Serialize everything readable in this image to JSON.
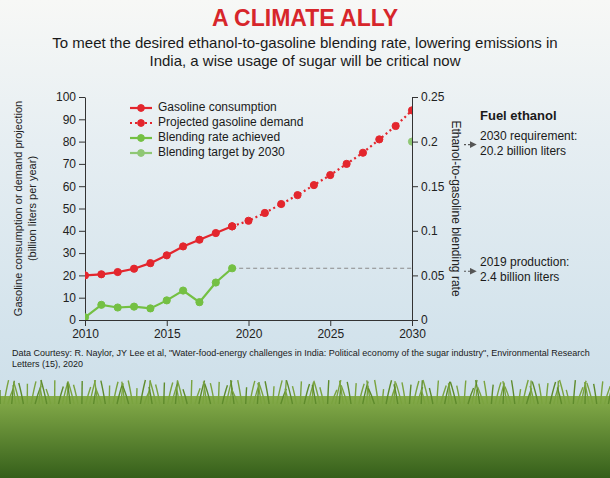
{
  "chart_data": {
    "type": "line",
    "title": "A CLIMATE ALLY",
    "subtitle": "To meet the desired ethanol-to-gasoline blending rate, lowering emissions in India, a wise usage of sugar will be critical now",
    "x": [
      2010,
      2011,
      2012,
      2013,
      2014,
      2015,
      2016,
      2017,
      2018,
      2019,
      2020,
      2021,
      2022,
      2023,
      2024,
      2025,
      2026,
      2027,
      2028,
      2029,
      2030
    ],
    "xlim": [
      2010,
      2030
    ],
    "xticks": [
      2010,
      2015,
      2020,
      2025,
      2030
    ],
    "ylim": [
      0,
      100
    ],
    "yticks": [
      0,
      10,
      20,
      30,
      40,
      50,
      60,
      70,
      80,
      90,
      100
    ],
    "y2lim": [
      0,
      0.25
    ],
    "y2ticks": [
      0,
      0.05,
      0.1,
      0.15,
      0.2,
      0.25
    ],
    "y_label": "Gasoline consumption or demand projection (billion liters per year)",
    "y2_label": "Ethanol-to-gasoline blending rate",
    "grid": false,
    "legend": "upper left",
    "series": [
      {
        "name": "Gasoline consumption",
        "color": "#e3262d",
        "line_style": "solid",
        "marker": "circle",
        "values": [
          20,
          20.5,
          21.5,
          23,
          25.5,
          29,
          33,
          36,
          39,
          42,
          null,
          null,
          null,
          null,
          null,
          null,
          null,
          null,
          null,
          null,
          null
        ]
      },
      {
        "name": "Projected gasoline demand",
        "color": "#e3262d",
        "line_style": "dotted",
        "marker": "circle",
        "values": [
          null,
          null,
          null,
          null,
          null,
          null,
          null,
          null,
          null,
          42,
          44.5,
          48,
          52,
          56,
          60.5,
          65,
          70,
          75,
          81,
          87,
          94
        ]
      },
      {
        "name": "Blending rate achieved",
        "color": "#74c043",
        "line_style": "solid",
        "marker": "circle",
        "axis": "y2",
        "values": [
          0.003,
          0.017,
          0.014,
          0.015,
          0.013,
          0.022,
          0.033,
          0.02,
          0.042,
          0.058,
          null,
          null,
          null,
          null,
          null,
          null,
          null,
          null,
          null,
          null,
          null
        ]
      },
      {
        "name": "Blending target by 2030",
        "color": "#8fc774",
        "line_style": "solid",
        "marker": "circle",
        "axis": "y2",
        "values": [
          null,
          null,
          null,
          null,
          null,
          null,
          null,
          null,
          null,
          null,
          null,
          null,
          null,
          null,
          null,
          null,
          null,
          null,
          null,
          null,
          0.2
        ]
      }
    ],
    "annotations": {
      "heading": "Fuel ethanol",
      "notes": [
        "2030 requirement: 20.2 billion liters",
        "2019 production: 2.4 billion liters"
      ]
    },
    "source": "Data Courtesy: R. Naylor, JY Lee et al, \"Water-food-energy challenges in India: Political economy of the sugar industry\", Environmental Research Letters (15), 2020"
  }
}
